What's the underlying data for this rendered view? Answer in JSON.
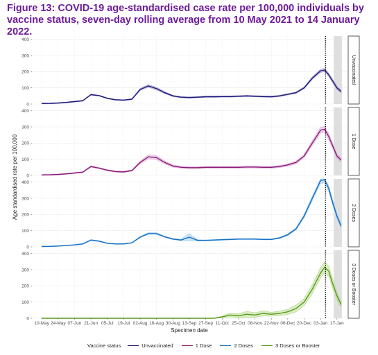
{
  "title": "Figure 13: COVID-19 age-standardised case rate per 100,000 individuals by vaccine status, seven-day rolling average from 10 May 2021 to 14 January 2022.",
  "chart_data": {
    "type": "line",
    "ylabel": "Age standardised rate per 100,000",
    "xlabel": "Specimen date",
    "x_tick_labels": [
      "10-May",
      "24-May",
      "07-Jun",
      "21-Jun",
      "05-Jul",
      "19-Jul",
      "02-Aug",
      "16-Aug",
      "30-Aug",
      "13-Sep",
      "27-Sep",
      "11-Oct",
      "25-Oct",
      "08-Nov",
      "22-Nov",
      "06-Dec",
      "20-Dec",
      "03-Jan",
      "17-Jan"
    ],
    "y_ticks": [
      0,
      100,
      200,
      300,
      400
    ],
    "ylim": [
      0,
      420
    ],
    "vertical_dashed_line_x": 17.3,
    "grey_band_x": [
      17.8,
      18.3
    ],
    "x": [
      0,
      0.5,
      1,
      1.5,
      2,
      2.5,
      3,
      3.5,
      4,
      4.5,
      5,
      5.5,
      6,
      6.5,
      7,
      7.5,
      8,
      8.5,
      9,
      9.5,
      10,
      10.5,
      11,
      11.5,
      12,
      12.5,
      13,
      13.5,
      14,
      14.5,
      15,
      15.5,
      16,
      16.5,
      17,
      17.25,
      17.5,
      17.75,
      18,
      18.25
    ],
    "legend_title": "Vaccine status",
    "panels": [
      {
        "strip": "Unvaccinated",
        "color": "#1f1a7a",
        "band_color": "#9a97cc",
        "values": [
          3,
          4,
          6,
          10,
          15,
          20,
          58,
          52,
          35,
          26,
          24,
          30,
          90,
          112,
          95,
          70,
          50,
          42,
          40,
          42,
          45,
          45,
          46,
          46,
          48,
          50,
          48,
          46,
          45,
          50,
          60,
          70,
          100,
          160,
          205,
          210,
          180,
          140,
          100,
          78
        ],
        "ci": [
          3,
          3,
          3,
          3,
          3,
          3,
          3,
          3,
          3,
          3,
          3,
          3,
          6,
          8,
          8,
          6,
          4,
          4,
          4,
          4,
          4,
          4,
          4,
          4,
          4,
          4,
          4,
          4,
          4,
          4,
          4,
          5,
          6,
          8,
          10,
          10,
          10,
          10,
          10,
          8
        ]
      },
      {
        "strip": "1 Dose",
        "color": "#8b1a7a",
        "band_color": "#d9a0d0",
        "values": [
          3,
          4,
          6,
          10,
          15,
          20,
          55,
          45,
          32,
          24,
          22,
          30,
          80,
          115,
          110,
          80,
          58,
          50,
          48,
          48,
          50,
          50,
          50,
          50,
          50,
          52,
          52,
          50,
          50,
          55,
          65,
          80,
          120,
          200,
          280,
          285,
          240,
          180,
          120,
          95
        ],
        "ci": [
          3,
          3,
          3,
          3,
          3,
          3,
          4,
          4,
          4,
          4,
          4,
          4,
          8,
          12,
          12,
          9,
          7,
          6,
          6,
          6,
          6,
          6,
          6,
          6,
          6,
          6,
          6,
          6,
          6,
          6,
          7,
          8,
          10,
          14,
          18,
          18,
          18,
          16,
          14,
          12
        ]
      },
      {
        "strip": "2 Doses",
        "color": "#1670c4",
        "band_color": "#8fc3ee",
        "values": [
          2,
          3,
          5,
          8,
          12,
          18,
          42,
          35,
          22,
          18,
          18,
          25,
          60,
          82,
          82,
          62,
          48,
          42,
          60,
          40,
          40,
          42,
          44,
          46,
          48,
          48,
          48,
          46,
          46,
          55,
          75,
          110,
          190,
          300,
          410,
          415,
          360,
          270,
          190,
          130
        ],
        "ci": [
          2,
          2,
          2,
          2,
          2,
          2,
          3,
          3,
          2,
          2,
          2,
          2,
          4,
          5,
          5,
          4,
          4,
          4,
          22,
          4,
          3,
          3,
          3,
          3,
          3,
          3,
          3,
          3,
          3,
          4,
          5,
          6,
          10,
          14,
          18,
          18,
          18,
          16,
          14,
          12
        ]
      },
      {
        "strip": "3 Doses or Booster",
        "color": "#5a9a1a",
        "band_color": "#aed67e",
        "values": [
          0,
          0,
          0,
          0,
          0,
          0,
          0,
          0,
          0,
          0,
          0,
          0,
          0,
          0,
          0,
          0,
          0,
          0,
          0,
          0,
          0,
          0,
          8,
          20,
          15,
          25,
          20,
          30,
          25,
          30,
          40,
          60,
          100,
          180,
          280,
          315,
          290,
          210,
          140,
          85
        ],
        "ci": [
          0,
          0,
          0,
          0,
          0,
          0,
          0,
          0,
          0,
          0,
          0,
          0,
          0,
          0,
          0,
          0,
          0,
          0,
          0,
          0,
          0,
          0,
          6,
          12,
          12,
          18,
          14,
          16,
          12,
          14,
          16,
          20,
          22,
          28,
          32,
          32,
          32,
          28,
          24,
          18
        ]
      }
    ],
    "legend": [
      {
        "label": "Unvaccinated",
        "color": "#1f1a7a"
      },
      {
        "label": "1 Dose",
        "color": "#8b1a7a"
      },
      {
        "label": "2 Doses",
        "color": "#1670c4"
      },
      {
        "label": "3 Doses or Booster",
        "color": "#5a9a1a"
      }
    ]
  }
}
